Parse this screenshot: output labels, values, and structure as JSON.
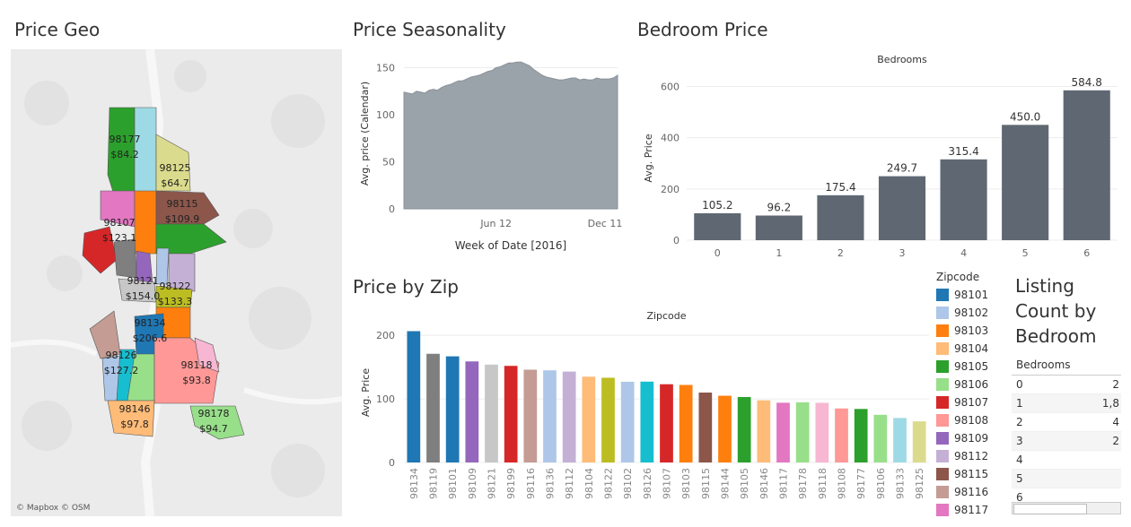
{
  "titles": {
    "geo": "Price Geo",
    "seasonality": "Price Seasonality",
    "bedroom": "Bedroom Price",
    "zip": "Price by Zip",
    "listing": "Listing Count by Bedroom"
  },
  "map": {
    "attribution": "© Mapbox © OSM",
    "labels": [
      {
        "zip": "98177",
        "price": "$84.2"
      },
      {
        "zip": "98125",
        "price": "$64.7"
      },
      {
        "zip": "98115",
        "price": "$109.9"
      },
      {
        "zip": "98107",
        "price": "$123.1"
      },
      {
        "zip": "98121",
        "price": "$154.0"
      },
      {
        "zip": "98122",
        "price": "$133.3"
      },
      {
        "zip": "98134",
        "price": "$206.6"
      },
      {
        "zip": "98126",
        "price": "$127.2"
      },
      {
        "zip": "98118",
        "price": "$93.8"
      },
      {
        "zip": "98146",
        "price": "$97.8"
      },
      {
        "zip": "98178",
        "price": "$94.7"
      }
    ]
  },
  "chart_data": [
    {
      "type": "area",
      "title": "Price Seasonality",
      "xlabel": "Week of Date [2016]",
      "ylabel": "Avg. price (Calendar)",
      "ylim": [
        0,
        160
      ],
      "yticks": [
        0,
        50,
        100,
        150
      ],
      "xtick_labels": [
        {
          "label": "Jun 12",
          "week": 23
        },
        {
          "label": "Dec 11",
          "week": 49
        }
      ],
      "x": [
        1,
        2,
        3,
        4,
        5,
        6,
        7,
        8,
        9,
        10,
        11,
        12,
        13,
        14,
        15,
        16,
        17,
        18,
        19,
        20,
        21,
        22,
        23,
        24,
        25,
        26,
        27,
        28,
        29,
        30,
        31,
        32,
        33,
        34,
        35,
        36,
        37,
        38,
        39,
        40,
        41,
        42,
        43,
        44,
        45,
        46,
        47,
        48,
        49,
        50,
        51,
        52
      ],
      "values": [
        124,
        123,
        122,
        125,
        124,
        123,
        126,
        127,
        126,
        129,
        131,
        132,
        134,
        136,
        136,
        138,
        140,
        141,
        142,
        144,
        146,
        147,
        150,
        151,
        153,
        155,
        155,
        156,
        156,
        154,
        152,
        148,
        145,
        142,
        140,
        139,
        138,
        137,
        137,
        138,
        139,
        139,
        137,
        138,
        137,
        137,
        139,
        138,
        138,
        138,
        139,
        142
      ],
      "color": "#9aa2aa",
      "grid": true
    },
    {
      "type": "bar",
      "title": "Bedroom Price",
      "header": "Bedrooms",
      "ylabel": "Avg. Price",
      "ylim": [
        0,
        640
      ],
      "yticks": [
        0,
        200,
        400,
        600
      ],
      "categories": [
        "0",
        "1",
        "2",
        "3",
        "4",
        "5",
        "6"
      ],
      "values": [
        105.2,
        96.2,
        175.4,
        249.7,
        315.4,
        450.0,
        584.8
      ],
      "data_labels": [
        "105.2",
        "96.2",
        "175.4",
        "249.7",
        "315.4",
        "450.0",
        "584.8"
      ],
      "color": "#5f6872",
      "grid": true
    },
    {
      "type": "bar",
      "title": "Price by Zip",
      "header": "Zipcode",
      "ylabel": "Avg. Price",
      "ylim": [
        0,
        220
      ],
      "yticks": [
        0,
        100,
        200
      ],
      "categories": [
        "98134",
        "98119",
        "98101",
        "98109",
        "98121",
        "98199",
        "98116",
        "98136",
        "98112",
        "98104",
        "98122",
        "98102",
        "98126",
        "98107",
        "98103",
        "98115",
        "98144",
        "98105",
        "98146",
        "98117",
        "98178",
        "98118",
        "98108",
        "98177",
        "98106",
        "98133",
        "98125"
      ],
      "values": [
        206.6,
        171,
        167,
        159,
        154.0,
        152,
        146,
        145,
        143,
        135,
        133.3,
        127,
        127.2,
        123.1,
        122,
        110,
        105,
        103,
        97.8,
        94,
        94.7,
        93.8,
        85,
        84.2,
        75,
        70,
        64.7
      ],
      "colors": [
        "#1f77b4",
        "#7f7f7f",
        "#1f77b4",
        "#9467bd",
        "#c7c7c7",
        "#d62728",
        "#c49c94",
        "#aec7e8",
        "#c5b0d5",
        "#ffbb78",
        "#bcbd22",
        "#aec7e8",
        "#17becf",
        "#d62728",
        "#ff7f0e",
        "#8c564b",
        "#ff7f0e",
        "#2ca02c",
        "#ffbb78",
        "#e377c2",
        "#98df8a",
        "#f7b6d2",
        "#ff9896",
        "#2ca02c",
        "#98df8a",
        "#9edae5",
        "#dbdb8d"
      ],
      "grid": true
    }
  ],
  "legend": {
    "title": "Zipcode",
    "items": [
      {
        "label": "98101",
        "color": "#1f77b4"
      },
      {
        "label": "98102",
        "color": "#aec7e8"
      },
      {
        "label": "98103",
        "color": "#ff7f0e"
      },
      {
        "label": "98104",
        "color": "#ffbb78"
      },
      {
        "label": "98105",
        "color": "#2ca02c"
      },
      {
        "label": "98106",
        "color": "#98df8a"
      },
      {
        "label": "98107",
        "color": "#d62728"
      },
      {
        "label": "98108",
        "color": "#ff9896"
      },
      {
        "label": "98109",
        "color": "#9467bd"
      },
      {
        "label": "98112",
        "color": "#c5b0d5"
      },
      {
        "label": "98115",
        "color": "#8c564b"
      },
      {
        "label": "98116",
        "color": "#c49c94"
      },
      {
        "label": "98117",
        "color": "#e377c2"
      }
    ]
  },
  "listing_table": {
    "header": "Bedrooms",
    "rows": [
      {
        "bedroom": "0",
        "count": "2"
      },
      {
        "bedroom": "1",
        "count": "1,8"
      },
      {
        "bedroom": "2",
        "count": "4"
      },
      {
        "bedroom": "3",
        "count": "2"
      },
      {
        "bedroom": "4",
        "count": ""
      },
      {
        "bedroom": "5",
        "count": ""
      },
      {
        "bedroom": "6",
        "count": ""
      }
    ]
  }
}
